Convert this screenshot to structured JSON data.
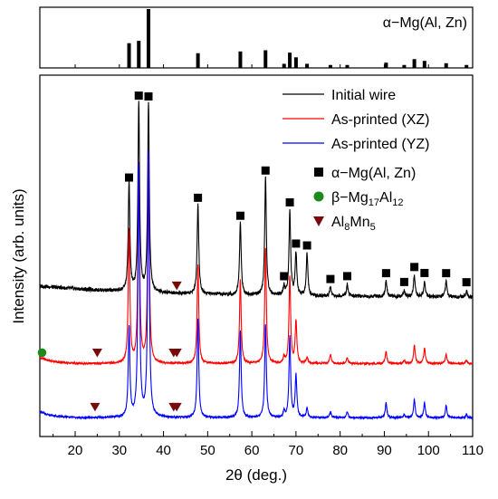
{
  "chart_data": {
    "type": "line",
    "xlabel": "2θ (deg.)",
    "ylabel": "Intensity (arb. units)",
    "xlim": [
      12,
      110
    ],
    "x_ticks": [
      "20",
      "30",
      "40",
      "50",
      "60",
      "70",
      "80",
      "90",
      "100",
      "110"
    ],
    "grid": false,
    "legend_position": "top-right",
    "reference_panel": {
      "label": "α−Mg(Al, Zn)",
      "peaks": [
        {
          "x": 32.2,
          "h": 0.42
        },
        {
          "x": 34.4,
          "h": 0.46
        },
        {
          "x": 36.6,
          "h": 1.0
        },
        {
          "x": 47.8,
          "h": 0.25
        },
        {
          "x": 57.4,
          "h": 0.28
        },
        {
          "x": 63.1,
          "h": 0.3
        },
        {
          "x": 67.3,
          "h": 0.07
        },
        {
          "x": 68.6,
          "h": 0.26
        },
        {
          "x": 70.0,
          "h": 0.18
        },
        {
          "x": 72.5,
          "h": 0.07
        },
        {
          "x": 77.8,
          "h": 0.05
        },
        {
          "x": 81.6,
          "h": 0.05
        },
        {
          "x": 90.4,
          "h": 0.09
        },
        {
          "x": 94.5,
          "h": 0.05
        },
        {
          "x": 96.8,
          "h": 0.15
        },
        {
          "x": 99.1,
          "h": 0.12
        },
        {
          "x": 104.0,
          "h": 0.08
        },
        {
          "x": 108.6,
          "h": 0.05
        }
      ]
    },
    "series": [
      {
        "name": "Initial wire",
        "color": "#000000",
        "baseline": 0.0,
        "peaks": [
          {
            "x": 32.2,
            "h": 0.36
          },
          {
            "x": 34.4,
            "h": 0.63
          },
          {
            "x": 36.6,
            "h": 0.63
          },
          {
            "x": 47.8,
            "h": 0.3
          },
          {
            "x": 57.4,
            "h": 0.24
          },
          {
            "x": 63.1,
            "h": 0.39
          },
          {
            "x": 67.3,
            "h": 0.03
          },
          {
            "x": 68.6,
            "h": 0.28
          },
          {
            "x": 70.0,
            "h": 0.14
          },
          {
            "x": 72.5,
            "h": 0.14
          },
          {
            "x": 77.8,
            "h": 0.03
          },
          {
            "x": 81.6,
            "h": 0.04
          },
          {
            "x": 90.4,
            "h": 0.05
          },
          {
            "x": 94.5,
            "h": 0.02
          },
          {
            "x": 96.8,
            "h": 0.07
          },
          {
            "x": 99.1,
            "h": 0.05
          },
          {
            "x": 104.0,
            "h": 0.05
          },
          {
            "x": 108.6,
            "h": 0.02
          }
        ]
      },
      {
        "name": "As-printed (XZ)",
        "color": "#ff0000",
        "baseline": -0.22,
        "peaks": [
          {
            "x": 32.2,
            "h": 0.44
          },
          {
            "x": 34.4,
            "h": 0.66
          },
          {
            "x": 36.6,
            "h": 0.7
          },
          {
            "x": 47.8,
            "h": 0.33
          },
          {
            "x": 57.4,
            "h": 0.28
          },
          {
            "x": 63.1,
            "h": 0.38
          },
          {
            "x": 67.3,
            "h": 0.02
          },
          {
            "x": 68.6,
            "h": 0.29
          },
          {
            "x": 70.0,
            "h": 0.14
          },
          {
            "x": 72.5,
            "h": 0.02
          },
          {
            "x": 77.8,
            "h": 0.03
          },
          {
            "x": 81.6,
            "h": 0.02
          },
          {
            "x": 90.4,
            "h": 0.04
          },
          {
            "x": 94.5,
            "h": 0.01
          },
          {
            "x": 96.8,
            "h": 0.06
          },
          {
            "x": 99.1,
            "h": 0.05
          },
          {
            "x": 104.0,
            "h": 0.03
          },
          {
            "x": 108.6,
            "h": 0.01
          }
        ]
      },
      {
        "name": "As-printed (YZ)",
        "color": "#0000ff",
        "baseline": -0.4,
        "peaks": [
          {
            "x": 32.2,
            "h": 0.3
          },
          {
            "x": 34.4,
            "h": 0.84
          },
          {
            "x": 36.6,
            "h": 0.88
          },
          {
            "x": 47.8,
            "h": 0.33
          },
          {
            "x": 57.4,
            "h": 0.29
          },
          {
            "x": 63.1,
            "h": 0.31
          },
          {
            "x": 67.3,
            "h": 0.02
          },
          {
            "x": 68.6,
            "h": 0.27
          },
          {
            "x": 70.0,
            "h": 0.14
          },
          {
            "x": 72.5,
            "h": 0.03
          },
          {
            "x": 77.8,
            "h": 0.02
          },
          {
            "x": 81.6,
            "h": 0.02
          },
          {
            "x": 90.4,
            "h": 0.05
          },
          {
            "x": 94.5,
            "h": 0.01
          },
          {
            "x": 96.8,
            "h": 0.06
          },
          {
            "x": 99.1,
            "h": 0.05
          },
          {
            "x": 104.0,
            "h": 0.04
          },
          {
            "x": 108.6,
            "h": 0.01
          }
        ]
      }
    ],
    "phase_legend": [
      {
        "key": "alpha",
        "label": "α−Mg(Al, Zn)",
        "marker": "square",
        "color": "#000000"
      },
      {
        "key": "beta",
        "label": "β−Mg17Al12",
        "marker": "circle",
        "color": "#1e8a1e"
      },
      {
        "key": "al8mn5",
        "label": "Al8Mn5",
        "marker": "triangle-down",
        "color": "#7a0a0a"
      }
    ],
    "phase_markers": {
      "alpha_on_initial_wire": [
        32.2,
        34.4,
        36.6,
        47.8,
        57.4,
        63.1,
        67.3,
        68.6,
        70.0,
        72.5,
        77.8,
        81.6,
        90.4,
        94.5,
        96.8,
        99.1,
        104.0,
        108.6
      ],
      "beta_on_xz": [
        12.5
      ],
      "al8mn5_on_initial_wire": [
        43.0
      ],
      "al8mn5_on_xz": [
        25.0,
        42.3,
        43.0
      ],
      "al8mn5_on_yz": [
        24.5,
        42.3,
        43.0
      ]
    }
  }
}
